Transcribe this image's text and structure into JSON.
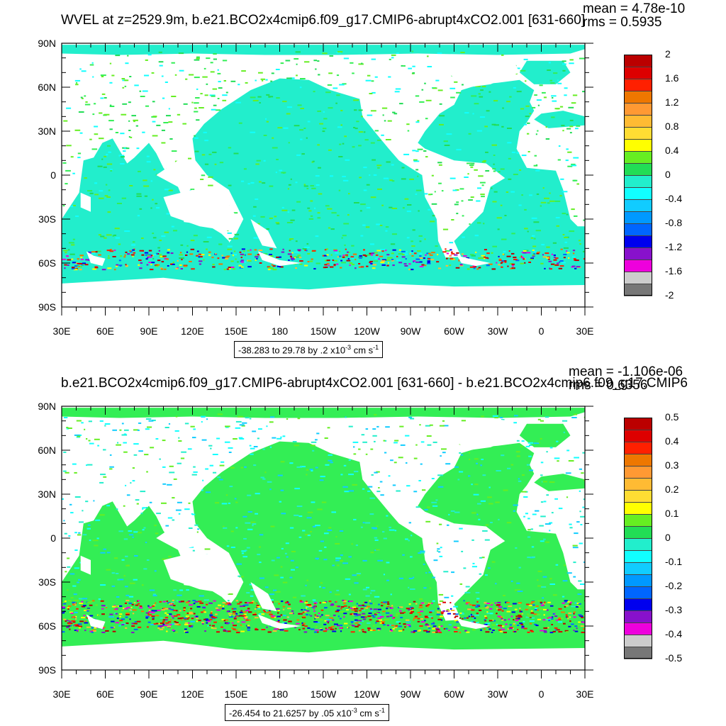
{
  "panels": [
    {
      "title": "WVEL at z=2529.9m, b.e21.BCO2x4cmip6.f09_g17.CMIP6-abrupt4xCO2.001 [631-660]",
      "stats": {
        "mean": "mean = 4.78e-10",
        "rms": "rms = 0.5935"
      },
      "range_text": "-38.283 to 29.78 by .2 x10",
      "range_exp": "-3",
      "range_unit": " cm s",
      "range_unit_exp": "-1",
      "colorbar_labels": [
        "2",
        "1.6",
        "1.2",
        "0.8",
        "0.4",
        "0",
        "-0.4",
        "-0.8",
        "-1.2",
        "-1.6",
        "-2"
      ]
    },
    {
      "title": "b.e21.BCO2x4cmip6.f09_g17.CMIP6-abrupt4xCO2.001 [631-660] - b.e21.BCO2x4cmip6.f09_g17.CMIP6",
      "stats": {
        "mean": "mean = -1.106e-06",
        "rms": "rms = 0.6356"
      },
      "range_text": "-26.454 to 21.6257 by .05 x10",
      "range_exp": "-3",
      "range_unit": " cm s",
      "range_unit_exp": "-1",
      "colorbar_labels": [
        "0.5",
        "0.4",
        "0.3",
        "0.2",
        "0.1",
        "0",
        "-0.1",
        "-0.2",
        "-0.3",
        "-0.4",
        "-0.5"
      ]
    }
  ],
  "lat_labels": [
    "90N",
    "60N",
    "30N",
    "0",
    "30S",
    "60S",
    "90S"
  ],
  "lon_labels": [
    "30E",
    "60E",
    "90E",
    "120E",
    "150E",
    "180",
    "150W",
    "120W",
    "90W",
    "60W",
    "30W",
    "0",
    "30E"
  ],
  "colors": {
    "palette": [
      "#bb0000",
      "#dd0000",
      "#ff2000",
      "#ee7700",
      "#ff9933",
      "#ffbb33",
      "#ffdd33",
      "#ffff00",
      "#66ee22",
      "#22dd55",
      "#22eecc",
      "#11ffff",
      "#11ccff",
      "#0099ff",
      "#0066ff",
      "#0000ee",
      "#8811cc",
      "#ee00dd",
      "#cccccc",
      "#777777"
    ],
    "ocean_main": "#22eecc",
    "ocean_green": "#33ee55"
  }
}
